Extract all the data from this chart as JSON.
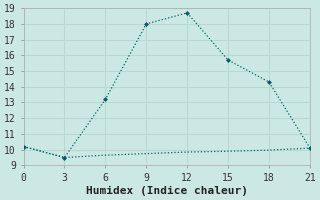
{
  "xlabel": "Humidex (Indice chaleur)",
  "bg_color": "#cce8e4",
  "grid_color": "#b8d8d4",
  "line_color": "#006060",
  "line1_x": [
    0,
    3,
    6,
    9,
    12,
    15,
    18,
    21
  ],
  "line1_y": [
    10.2,
    9.5,
    13.2,
    18.0,
    18.7,
    15.7,
    14.3,
    10.1
  ],
  "line2_x": [
    0,
    3,
    6,
    9,
    12,
    15,
    18,
    21
  ],
  "line2_y": [
    10.2,
    9.5,
    9.65,
    9.75,
    9.85,
    9.9,
    9.97,
    10.1
  ],
  "xlim": [
    0,
    21
  ],
  "ylim": [
    9,
    19
  ],
  "xticks": [
    0,
    3,
    6,
    9,
    12,
    15,
    18,
    21
  ],
  "yticks": [
    9,
    10,
    11,
    12,
    13,
    14,
    15,
    16,
    17,
    18,
    19
  ],
  "tick_fontsize": 7,
  "label_fontsize": 8
}
